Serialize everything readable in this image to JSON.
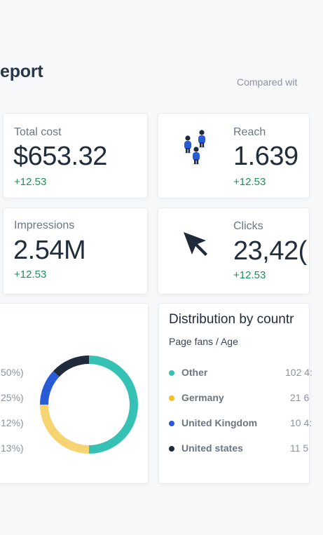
{
  "header": {
    "title": "eport",
    "compared": "Compared wit"
  },
  "stats": {
    "total_cost": {
      "label": "Total cost",
      "value": "$653.32",
      "delta": "+12.53"
    },
    "reach": {
      "label": "Reach",
      "value": "1.639",
      "delta": "+12.53",
      "icon": "people-icon"
    },
    "impressions": {
      "label": "Impressions",
      "value": "2.54M",
      "delta": "+12.53"
    },
    "clicks": {
      "label": "Clicks",
      "value": "23,42(",
      "delta": "+12.53",
      "icon": "cursor-icon"
    }
  },
  "donut": {
    "percent_labels": [
      "50%)",
      "25%)",
      "12%)",
      "13%)"
    ],
    "chart_data": {
      "type": "pie",
      "values": [
        50,
        25,
        12,
        13
      ],
      "colors": [
        "#35c2b5",
        "#f7d472",
        "#2a5bd7",
        "#1f2a3a"
      ]
    }
  },
  "distribution": {
    "title": "Distribution by countr",
    "subtitle": "Page fans / Age",
    "items": [
      {
        "label": "Other",
        "value": "102 4:",
        "color": "#35c2b5"
      },
      {
        "label": "Germany",
        "value": "21 6",
        "color": "#f5bf2a"
      },
      {
        "label": "United Kingdom",
        "value": "10 4:",
        "color": "#2a5bd7"
      },
      {
        "label": "United states",
        "value": "11 5",
        "color": "#1f2a3a"
      }
    ]
  },
  "colors": {
    "positive": "#1c8f55",
    "text_dark": "#222d3c",
    "text_muted": "#6c7582"
  }
}
